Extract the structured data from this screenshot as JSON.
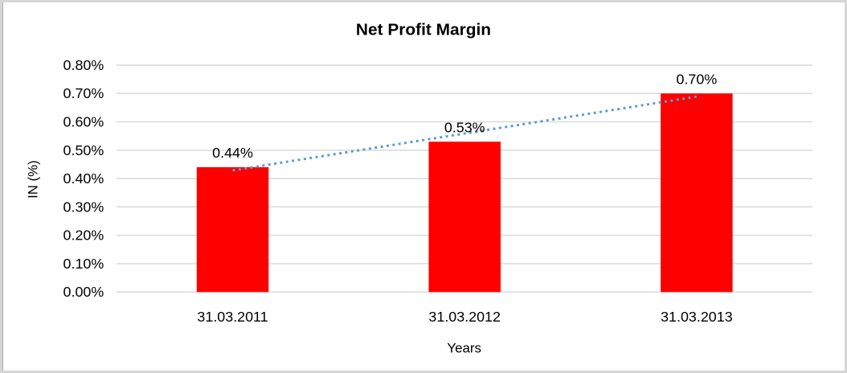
{
  "chart_data": {
    "type": "bar",
    "title": "Net Profit Margin",
    "categories": [
      "31.03.2011",
      "31.03.2012",
      "31.03.2013"
    ],
    "values": [
      0.44,
      0.53,
      0.7
    ],
    "data_labels": [
      "0.44%",
      "0.53%",
      "0.70%"
    ],
    "xlabel": "Years",
    "ylabel": "IN (%)",
    "ylim": [
      0,
      0.8
    ],
    "ytick_step": 0.1,
    "ytick_labels": [
      "0.00%",
      "0.10%",
      "0.20%",
      "0.30%",
      "0.40%",
      "0.50%",
      "0.60%",
      "0.70%",
      "0.80%"
    ],
    "grid": true,
    "legend": "none",
    "trendline": {
      "present": true,
      "style": "dotted",
      "from_category": "31.03.2011",
      "to_category": "31.03.2013"
    },
    "colors": {
      "bar": "#FF0000",
      "title": "#FF0000",
      "trendline": "#5B9BD5",
      "gridline": "#D9D9D9",
      "text": "#000000"
    }
  }
}
